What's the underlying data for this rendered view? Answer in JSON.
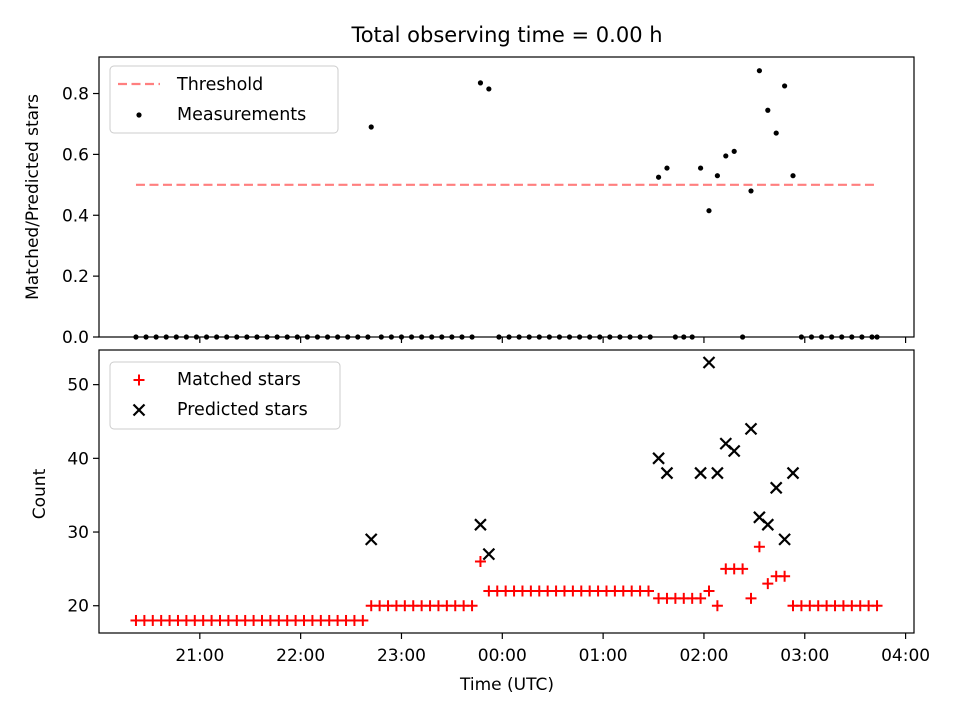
{
  "figure": {
    "title": "Total observing time = 0.00 h"
  },
  "colors": {
    "threshold": "#ff7f7f",
    "measurements": "#000000",
    "matched": "#ff0000",
    "predicted": "#000000"
  },
  "chart_data": [
    {
      "type": "scatter",
      "panel": "top",
      "title": "Total observing time = 0.00 h",
      "xlabel": "",
      "ylabel": "Matched/Predicted stars",
      "ylim": [
        0,
        0.92
      ],
      "yticks": [
        "0.0",
        "0.2",
        "0.4",
        "0.6",
        "0.8"
      ],
      "legend": {
        "placement": "top-left",
        "entries": [
          "Threshold",
          "Measurements"
        ]
      },
      "threshold": {
        "name": "Threshold",
        "value": 0.5,
        "x_start": "20:22",
        "x_end": "03:43",
        "style": "dashed"
      },
      "series": [
        {
          "name": "Measurements",
          "marker": "dot",
          "points": [
            [
              "20:22",
              0
            ],
            [
              "20:28",
              0
            ],
            [
              "20:34",
              0
            ],
            [
              "20:40",
              0
            ],
            [
              "20:46",
              0
            ],
            [
              "20:52",
              0
            ],
            [
              "20:58",
              0
            ],
            [
              "21:04",
              0
            ],
            [
              "21:10",
              0
            ],
            [
              "21:16",
              0
            ],
            [
              "21:22",
              0
            ],
            [
              "21:28",
              0
            ],
            [
              "21:34",
              0
            ],
            [
              "21:40",
              0
            ],
            [
              "21:46",
              0
            ],
            [
              "21:52",
              0
            ],
            [
              "21:58",
              0
            ],
            [
              "22:04",
              0
            ],
            [
              "22:10",
              0
            ],
            [
              "22:16",
              0
            ],
            [
              "22:22",
              0
            ],
            [
              "22:28",
              0
            ],
            [
              "22:34",
              0
            ],
            [
              "22:40",
              0
            ],
            [
              "22:42",
              0.69
            ],
            [
              "22:48",
              0
            ],
            [
              "22:54",
              0
            ],
            [
              "23:00",
              0
            ],
            [
              "23:06",
              0
            ],
            [
              "23:12",
              0
            ],
            [
              "23:18",
              0
            ],
            [
              "23:24",
              0
            ],
            [
              "23:30",
              0
            ],
            [
              "23:36",
              0
            ],
            [
              "23:42",
              0
            ],
            [
              "23:47",
              0.835
            ],
            [
              "23:52",
              0.815
            ],
            [
              "23:58",
              0
            ],
            [
              "00:04",
              0
            ],
            [
              "00:10",
              0
            ],
            [
              "00:16",
              0
            ],
            [
              "00:22",
              0
            ],
            [
              "00:28",
              0
            ],
            [
              "00:34",
              0
            ],
            [
              "00:40",
              0
            ],
            [
              "00:46",
              0
            ],
            [
              "00:52",
              0
            ],
            [
              "00:58",
              0
            ],
            [
              "01:04",
              0
            ],
            [
              "01:10",
              0
            ],
            [
              "01:16",
              0
            ],
            [
              "01:22",
              0
            ],
            [
              "01:28",
              0
            ],
            [
              "01:33",
              0.525
            ],
            [
              "01:38",
              0.555
            ],
            [
              "01:43",
              0
            ],
            [
              "01:48",
              0
            ],
            [
              "01:53",
              0
            ],
            [
              "01:58",
              0.555
            ],
            [
              "02:03",
              0.415
            ],
            [
              "02:08",
              0.53
            ],
            [
              "02:13",
              0.595
            ],
            [
              "02:18",
              0.61
            ],
            [
              "02:23",
              0
            ],
            [
              "02:28",
              0.48
            ],
            [
              "02:33",
              0.875
            ],
            [
              "02:38",
              0.745
            ],
            [
              "02:43",
              0.67
            ],
            [
              "02:48",
              0.825
            ],
            [
              "02:53",
              0.53
            ],
            [
              "02:58",
              0
            ],
            [
              "03:04",
              0
            ],
            [
              "03:10",
              0
            ],
            [
              "03:16",
              0
            ],
            [
              "03:22",
              0
            ],
            [
              "03:28",
              0
            ],
            [
              "03:34",
              0
            ],
            [
              "03:40",
              0
            ],
            [
              "03:43",
              0
            ]
          ]
        }
      ]
    },
    {
      "type": "scatter",
      "panel": "bottom",
      "xlabel": "Time (UTC)",
      "ylabel": "Count",
      "ylim": [
        16.3,
        54.7
      ],
      "yticks": [
        "20",
        "30",
        "40",
        "50"
      ],
      "xlim": [
        "20:00",
        "04:05"
      ],
      "xticks": [
        "21:00",
        "22:00",
        "23:00",
        "00:00",
        "01:00",
        "02:00",
        "03:00",
        "04:00"
      ],
      "legend": {
        "placement": "top-left",
        "entries": [
          "Matched stars",
          "Predicted stars"
        ]
      },
      "series": [
        {
          "name": "Matched stars",
          "marker": "plus",
          "points": [
            [
              "20:22",
              18
            ],
            [
              "20:27",
              18
            ],
            [
              "20:32",
              18
            ],
            [
              "20:37",
              18
            ],
            [
              "20:42",
              18
            ],
            [
              "20:47",
              18
            ],
            [
              "20:52",
              18
            ],
            [
              "20:57",
              18
            ],
            [
              "21:02",
              18
            ],
            [
              "21:07",
              18
            ],
            [
              "21:12",
              18
            ],
            [
              "21:17",
              18
            ],
            [
              "21:22",
              18
            ],
            [
              "21:27",
              18
            ],
            [
              "21:32",
              18
            ],
            [
              "21:37",
              18
            ],
            [
              "21:42",
              18
            ],
            [
              "21:47",
              18
            ],
            [
              "21:52",
              18
            ],
            [
              "21:57",
              18
            ],
            [
              "22:02",
              18
            ],
            [
              "22:07",
              18
            ],
            [
              "22:12",
              18
            ],
            [
              "22:17",
              18
            ],
            [
              "22:22",
              18
            ],
            [
              "22:27",
              18
            ],
            [
              "22:32",
              18
            ],
            [
              "22:37",
              18
            ],
            [
              "22:42",
              20
            ],
            [
              "22:47",
              20
            ],
            [
              "22:52",
              20
            ],
            [
              "22:57",
              20
            ],
            [
              "23:02",
              20
            ],
            [
              "23:07",
              20
            ],
            [
              "23:12",
              20
            ],
            [
              "23:17",
              20
            ],
            [
              "23:22",
              20
            ],
            [
              "23:27",
              20
            ],
            [
              "23:32",
              20
            ],
            [
              "23:37",
              20
            ],
            [
              "23:42",
              20
            ],
            [
              "23:47",
              26
            ],
            [
              "23:52",
              22
            ],
            [
              "23:57",
              22
            ],
            [
              "00:02",
              22
            ],
            [
              "00:07",
              22
            ],
            [
              "00:12",
              22
            ],
            [
              "00:17",
              22
            ],
            [
              "00:22",
              22
            ],
            [
              "00:27",
              22
            ],
            [
              "00:32",
              22
            ],
            [
              "00:37",
              22
            ],
            [
              "00:42",
              22
            ],
            [
              "00:47",
              22
            ],
            [
              "00:52",
              22
            ],
            [
              "00:57",
              22
            ],
            [
              "01:02",
              22
            ],
            [
              "01:07",
              22
            ],
            [
              "01:12",
              22
            ],
            [
              "01:17",
              22
            ],
            [
              "01:22",
              22
            ],
            [
              "01:27",
              22
            ],
            [
              "01:33",
              21
            ],
            [
              "01:38",
              21
            ],
            [
              "01:43",
              21
            ],
            [
              "01:48",
              21
            ],
            [
              "01:53",
              21
            ],
            [
              "01:58",
              21
            ],
            [
              "02:03",
              22
            ],
            [
              "02:08",
              20
            ],
            [
              "02:13",
              25
            ],
            [
              "02:18",
              25
            ],
            [
              "02:23",
              25
            ],
            [
              "02:28",
              21
            ],
            [
              "02:33",
              28
            ],
            [
              "02:38",
              23
            ],
            [
              "02:43",
              24
            ],
            [
              "02:48",
              24
            ],
            [
              "02:53",
              20
            ],
            [
              "02:58",
              20
            ],
            [
              "03:03",
              20
            ],
            [
              "03:08",
              20
            ],
            [
              "03:13",
              20
            ],
            [
              "03:18",
              20
            ],
            [
              "03:23",
              20
            ],
            [
              "03:28",
              20
            ],
            [
              "03:33",
              20
            ],
            [
              "03:38",
              20
            ],
            [
              "03:43",
              20
            ]
          ]
        },
        {
          "name": "Predicted stars",
          "marker": "x",
          "points": [
            [
              "22:42",
              29
            ],
            [
              "23:47",
              31
            ],
            [
              "23:52",
              27
            ],
            [
              "01:33",
              40
            ],
            [
              "01:38",
              38
            ],
            [
              "01:58",
              38
            ],
            [
              "02:03",
              53
            ],
            [
              "02:08",
              38
            ],
            [
              "02:13",
              42
            ],
            [
              "02:18",
              41
            ],
            [
              "02:28",
              44
            ],
            [
              "02:33",
              32
            ],
            [
              "02:38",
              31
            ],
            [
              "02:43",
              36
            ],
            [
              "02:48",
              29
            ],
            [
              "02:53",
              38
            ]
          ]
        }
      ]
    }
  ]
}
